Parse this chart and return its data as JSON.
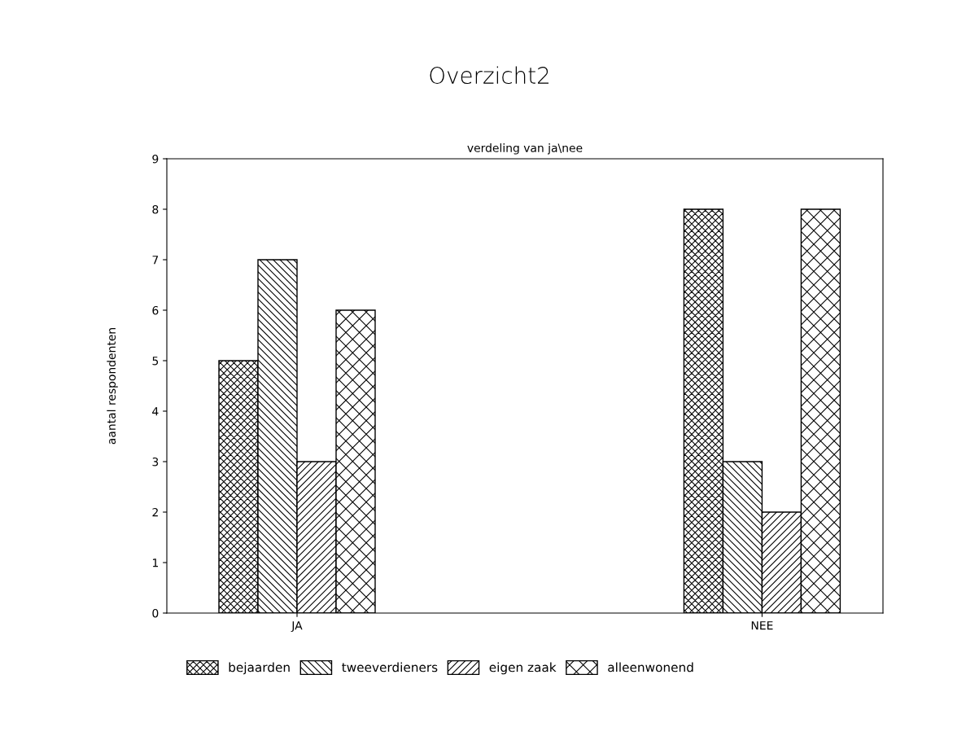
{
  "chart_data": {
    "type": "bar",
    "title": "Overzicht2",
    "subtitle": "verdeling van ja\\nee",
    "ylabel": "aantal respondenten",
    "categories": [
      "JA",
      "NEE"
    ],
    "series": [
      {
        "name": "bejaarden",
        "color": "#000000",
        "values": [
          5,
          8
        ]
      },
      {
        "name": "tweeverdieners",
        "color": "#000000",
        "values": [
          7,
          3
        ]
      },
      {
        "name": "eigen zaak",
        "color": "#000000",
        "values": [
          3,
          2
        ]
      },
      {
        "name": "alleenwonend",
        "color": "#000000",
        "values": [
          6,
          8
        ]
      }
    ],
    "ylim": [
      0,
      9
    ],
    "yticks": [
      0,
      1,
      2,
      3,
      4,
      5,
      6,
      7,
      8,
      9
    ],
    "grid": false,
    "legend": "bottom"
  }
}
